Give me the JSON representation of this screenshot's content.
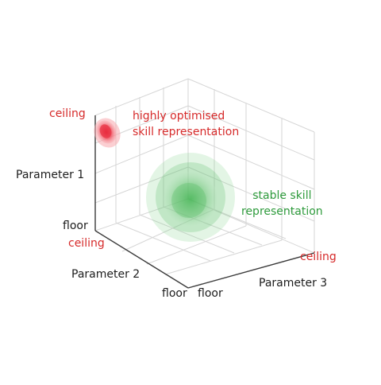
{
  "colors": {
    "ceiling_text": "#d62a2a",
    "floor_text": "#1c1c1c",
    "optimised": "#e8283a",
    "stable": "#3fb24f",
    "grid": "#d6d6d6",
    "axis": "#3a3a3a"
  },
  "axes": {
    "param1": {
      "label": "Parameter 1",
      "ceiling": "ceiling",
      "floor": "floor"
    },
    "param2": {
      "label": "Parameter 2",
      "ceiling": "ceiling",
      "floor": "floor"
    },
    "param3": {
      "label": "Parameter 3",
      "ceiling": "ceiling",
      "floor": "floor"
    }
  },
  "regions": {
    "optimised": {
      "line1": "highly optimised",
      "line2": "skill representation"
    },
    "stable": {
      "line1": "stable skill",
      "line2": "representation"
    }
  }
}
